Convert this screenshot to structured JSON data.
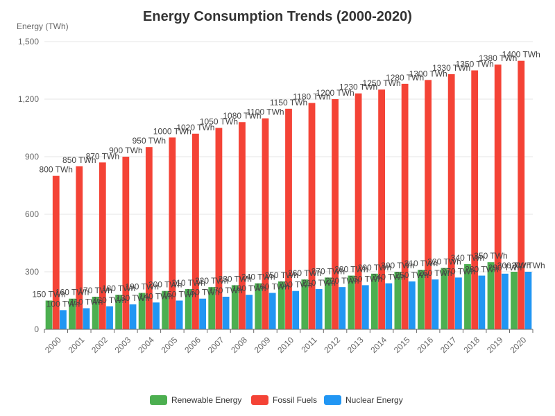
{
  "chart_data": {
    "type": "bar",
    "title": "Energy Consumption Trends (2000-2020)",
    "ylabel": "Energy (TWh)",
    "xlabel": "",
    "ylim": [
      0,
      1500
    ],
    "yticks": [
      0,
      300,
      600,
      900,
      1200,
      1500
    ],
    "ytick_labels": [
      "0",
      "300",
      "600",
      "900",
      "1,200",
      "1,500"
    ],
    "unit_suffix": " TWh",
    "grid": true,
    "legend_position": "bottom-center",
    "categories": [
      "2000",
      "2001",
      "2002",
      "2003",
      "2004",
      "2005",
      "2006",
      "2007",
      "2008",
      "2009",
      "2010",
      "2011",
      "2012",
      "2013",
      "2014",
      "2015",
      "2016",
      "2017",
      "2018",
      "2019",
      "2020"
    ],
    "series": [
      {
        "name": "Renewable Energy",
        "color": "#4caf50",
        "values": [
          150,
          160,
          170,
          180,
          190,
          200,
          210,
          220,
          230,
          240,
          250,
          260,
          270,
          280,
          290,
          300,
          310,
          320,
          340,
          350,
          300
        ]
      },
      {
        "name": "Fossil Fuels",
        "color": "#f44336",
        "values": [
          800,
          850,
          870,
          900,
          950,
          1000,
          1020,
          1050,
          1080,
          1100,
          1150,
          1180,
          1200,
          1230,
          1250,
          1280,
          1300,
          1330,
          1350,
          1380,
          1400
        ]
      },
      {
        "name": "Nuclear Energy",
        "color": "#2196f3",
        "values": [
          100,
          110,
          120,
          130,
          140,
          150,
          160,
          170,
          180,
          190,
          200,
          210,
          220,
          230,
          240,
          250,
          260,
          270,
          280,
          290,
          300
        ]
      }
    ]
  }
}
